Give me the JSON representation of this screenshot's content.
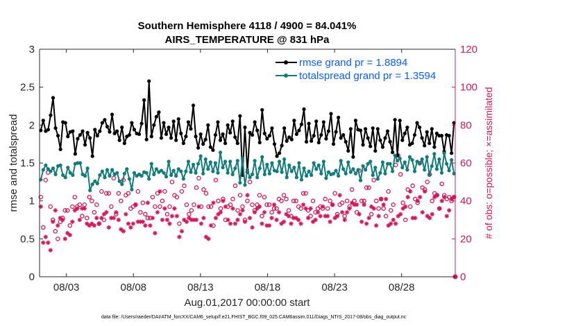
{
  "chart_data": {
    "type": "line",
    "title": "Southern Hemisphere 4118 / 4900 = 84.041%",
    "subtitle": "AIRS_TEMPERATURE @ 831 hPa",
    "xlabel": "Aug.01,2017 00:00:00 start",
    "ylabel": "rmse and totalspread",
    "ylabel_right": "# of obs: o=possible; ×=assimilated",
    "footnote": "data file: /Users/raeder/DAI/ATM_forcXX/CAM6_setup/f.e21.FHIST_BGC.f09_025.CAM6assim.011/Diags_NTrS_2017-08/obs_diag_output.nc",
    "xlim": [
      1,
      32
    ],
    "ylim": [
      0,
      3
    ],
    "ylim_right": [
      0,
      120
    ],
    "x_ticks": [
      3,
      8,
      13,
      18,
      23,
      28
    ],
    "x_tick_labels": [
      "08/03",
      "08/08",
      "08/13",
      "08/18",
      "08/23",
      "08/28"
    ],
    "y_ticks": [
      0,
      0.5,
      1,
      1.5,
      2,
      2.5,
      3
    ],
    "y_tick_labels": [
      "0",
      "0.5",
      "1",
      "1.5",
      "2",
      "2.5",
      "3"
    ],
    "y_ticks_right": [
      0,
      20,
      40,
      60,
      80,
      100,
      120
    ],
    "y_tick_labels_right": [
      "0",
      "20",
      "40",
      "60",
      "80",
      "100",
      "120"
    ],
    "legend_position": "top-right",
    "series": [
      {
        "name": "rmse grand pr = 1.8894",
        "color": "#000000",
        "marker": "filled-circle",
        "axis": "left",
        "values": [
          1.93,
          2.06,
          1.92,
          1.94,
          2.13,
          2.36,
          1.96,
          1.86,
          1.68,
          2.04,
          2.03,
          1.85,
          1.91,
          1.92,
          1.62,
          1.82,
          1.87,
          1.92,
          1.74,
          1.9,
          1.83,
          1.59,
          1.94,
          1.86,
          1.92,
          2.03,
          2.07,
          1.98,
          1.91,
          2.14,
          1.89,
          1.92,
          1.8,
          1.97,
          1.76,
          1.85,
          1.87,
          2.03,
          1.94,
          1.89,
          1.88,
          2.02,
          2.33,
          1.81,
          2.58,
          1.85,
          2.0,
          2.11,
          2.17,
          1.83,
          2.03,
          1.88,
          1.97,
          1.83,
          2.05,
          1.8,
          2.08,
          1.89,
          1.76,
          1.85,
          2.04,
          1.95,
          2.26,
          1.85,
          1.7,
          1.88,
          1.75,
          1.81,
          2.0,
          1.71,
          1.67,
          1.87,
          2.04,
          1.8,
          1.88,
          1.76,
          2.0,
          1.9,
          2.05,
          1.84,
          1.76,
          2.12,
          1.34,
          1.97,
          1.38,
          1.9,
          1.87,
          2.04,
          1.93,
          1.77,
          2.2,
          1.89,
          1.82,
          1.86,
          1.96,
          1.75,
          1.59,
          1.63,
          1.73,
          1.96,
          1.79,
          1.84,
          1.81,
          2.06,
          1.88,
          1.93,
          2.01,
          2.21,
          1.78,
          2.02,
          1.79,
          1.86,
          2.05,
          1.77,
          1.87,
          2.04,
          1.82,
          1.92,
          2.15,
          1.75,
          1.91,
          2.1,
          1.83,
          1.87,
          1.78,
          1.66,
          1.95,
          1.58,
          2.06,
          1.94,
          1.93,
          1.74,
          1.95,
          1.83,
          1.72,
          1.96,
          1.66,
          1.95,
          1.8,
          1.71,
          1.83,
          1.92,
          1.78,
          1.64,
          2.07,
          1.6,
          2.06,
          1.8,
          1.89,
          1.97,
          1.74,
          1.76,
          1.87,
          2.03,
          1.97,
          1.83,
          1.73,
          1.91,
          1.76,
          1.95,
          1.71,
          1.89,
          1.86,
          1.86,
          1.65,
          1.87,
          1.86,
          1.63,
          2.03
        ]
      },
      {
        "name": "totalspread grand pr = 1.3594",
        "color": "#117c7b",
        "marker": "filled-circle",
        "axis": "left",
        "values": [
          1.28,
          1.41,
          1.47,
          1.42,
          1.39,
          1.43,
          1.35,
          1.46,
          1.47,
          1.34,
          1.31,
          1.44,
          1.37,
          1.34,
          1.49,
          1.5,
          1.5,
          1.35,
          1.33,
          1.43,
          1.14,
          1.22,
          1.26,
          1.23,
          1.34,
          1.39,
          1.31,
          1.41,
          1.33,
          1.41,
          1.35,
          1.37,
          1.26,
          1.22,
          1.36,
          1.42,
          1.29,
          1.15,
          1.37,
          1.33,
          1.35,
          1.33,
          1.38,
          1.37,
          1.29,
          1.49,
          1.35,
          1.42,
          1.38,
          1.4,
          1.37,
          1.32,
          1.52,
          1.34,
          1.4,
          1.33,
          1.42,
          1.39,
          1.29,
          1.39,
          1.52,
          1.38,
          1.48,
          1.37,
          1.49,
          1.59,
          1.36,
          1.55,
          1.42,
          1.51,
          1.39,
          1.5,
          1.37,
          1.64,
          1.44,
          1.52,
          1.37,
          1.52,
          1.35,
          1.43,
          1.53,
          1.24,
          1.56,
          1.21,
          1.41,
          1.31,
          1.35,
          1.53,
          1.31,
          1.43,
          1.58,
          1.35,
          1.48,
          1.36,
          1.5,
          1.4,
          1.39,
          1.52,
          1.38,
          1.55,
          1.31,
          1.47,
          1.39,
          1.44,
          1.31,
          1.5,
          1.28,
          1.43,
          1.33,
          1.39,
          1.34,
          1.5,
          1.42,
          1.47,
          1.36,
          1.52,
          1.3,
          1.38,
          1.35,
          1.36,
          1.4,
          1.33,
          1.53,
          1.42,
          1.36,
          1.51,
          1.38,
          1.42,
          1.36,
          1.41,
          1.27,
          1.46,
          1.41,
          1.49,
          1.52,
          1.34,
          1.44,
          1.29,
          1.37,
          1.51,
          1.36,
          1.49,
          1.49,
          1.39,
          1.6,
          1.53,
          1.56,
          1.44,
          1.51,
          1.41,
          1.58,
          1.54,
          1.39,
          1.52,
          1.49,
          1.55,
          1.41,
          1.58,
          1.34,
          1.46,
          1.62,
          1.42,
          1.55,
          1.37,
          1.63,
          1.49,
          1.4,
          1.54,
          1.36
        ]
      },
      {
        "name": "possible",
        "color": "#d0175a",
        "marker": "open-circle",
        "axis": "right",
        "values": [
          42,
          26,
          51,
          55,
          37,
          30,
          24,
          20,
          29,
          31,
          35,
          35,
          27,
          37,
          42,
          37,
          38,
          32,
          38,
          31,
          42,
          40,
          34,
          38,
          28,
          45,
          30,
          44,
          44,
          37,
          52,
          33,
          44,
          40,
          51,
          43,
          44,
          36,
          37,
          38,
          45,
          34,
          39,
          33,
          31,
          31,
          42,
          37,
          44,
          37,
          40,
          45,
          33,
          37,
          50,
          43,
          42,
          28,
          45,
          48,
          38,
          33,
          35,
          38,
          47,
          52,
          37,
          46,
          44,
          37,
          37,
          27,
          51,
          40,
          36,
          41,
          30,
          37,
          38,
          41,
          48,
          35,
          43,
          37,
          30,
          40,
          50,
          38,
          35,
          38,
          43,
          32,
          42,
          38,
          38,
          34,
          36,
          36,
          41,
          40,
          43,
          41,
          35,
          32,
          40,
          40,
          37,
          36,
          44,
          44,
          35,
          32,
          40,
          34,
          36,
          37,
          36,
          41,
          36,
          40,
          38,
          44,
          33,
          38,
          39,
          32,
          40,
          37,
          46,
          40,
          34,
          56,
          40,
          40,
          47,
          47,
          33,
          51,
          40,
          36,
          41,
          36,
          32,
          45,
          35,
          38,
          59,
          64,
          54,
          39,
          30,
          46,
          37,
          48,
          41,
          39,
          60,
          47,
          46,
          50,
          54,
          40,
          44,
          43,
          36,
          49,
          43,
          41,
          42,
          40,
          42
        ]
      },
      {
        "name": "assimilated",
        "color": "#d0175a",
        "marker": "asterisk",
        "axis": "right",
        "values": [
          37,
          18,
          21,
          18,
          14,
          29,
          35,
          27,
          31,
          30,
          20,
          23,
          22,
          29,
          35,
          36,
          30,
          36,
          36,
          28,
          27,
          28,
          27,
          31,
          28,
          31,
          33,
          34,
          26,
          31,
          31,
          34,
          30,
          25,
          24,
          33,
          28,
          26,
          28,
          38,
          29,
          29,
          29,
          27,
          39,
          27,
          31,
          23,
          34,
          45,
          30,
          36,
          30,
          28,
          32,
          36,
          32,
          21,
          24,
          30,
          29,
          31,
          30,
          30,
          30,
          37,
          28,
          31,
          21,
          20,
          27,
          39,
          31,
          33,
          34,
          40,
          37,
          30,
          28,
          36,
          28,
          30,
          33,
          35,
          29,
          43,
          31,
          26,
          34,
          36,
          37,
          28,
          34,
          27,
          27,
          31,
          38,
          30,
          34,
          28,
          29,
          33,
          32,
          28,
          31,
          31,
          30,
          28,
          38,
          36,
          31,
          36,
          29,
          30,
          34,
          32,
          37,
          32,
          32,
          29,
          38,
          31,
          32,
          43,
          34,
          30,
          34,
          36,
          39,
          38,
          38,
          33,
          29,
          38,
          28,
          31,
          37,
          36,
          27,
          32,
          41,
          38,
          41,
          27,
          28,
          30,
          28,
          32,
          33,
          36,
          37,
          42,
          45,
          31,
          31,
          40,
          42,
          34,
          45,
          32,
          31,
          33,
          42,
          43,
          36,
          40,
          42,
          32,
          35,
          41,
          42
        ]
      }
    ]
  }
}
